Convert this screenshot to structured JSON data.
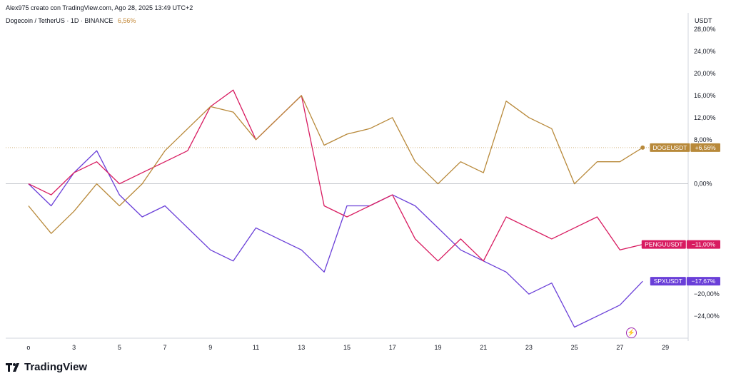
{
  "header": {
    "attribution": "Alex975 creato con TradingView.com, Ago 28, 2025 13:49 UTC+2",
    "symbol": "Dogecoin / TetherUS · 1D · BINANCE",
    "change": "6,56%"
  },
  "axis": {
    "unit": "USDT"
  },
  "brand": {
    "name": "TradingView"
  },
  "icons": {
    "flash": "lightning-icon",
    "logo": "tradingview-logo-icon"
  },
  "chart_data": {
    "type": "line",
    "x": [
      1,
      2,
      3,
      4,
      5,
      6,
      7,
      8,
      9,
      10,
      11,
      12,
      13,
      14,
      15,
      16,
      17,
      18,
      19,
      20,
      21,
      22,
      23,
      24,
      25,
      26,
      27,
      28
    ],
    "x_tick_labels": [
      "o",
      "3",
      "5",
      "7",
      "9",
      "11",
      "13",
      "15",
      "17",
      "19",
      "21",
      "23",
      "25",
      "27",
      "29"
    ],
    "y_tick_labels": [
      "28,00%",
      "24,00%",
      "20,00%",
      "16,00%",
      "12,00%",
      "8,00%",
      "0,00%",
      "−20,00%",
      "−24,00%"
    ],
    "ylim": [
      -28,
      31
    ],
    "series": [
      {
        "name": "SPXUSDT",
        "color": "#6a3fd8",
        "last_label": "−17,67%",
        "values": [
          0,
          -4,
          2,
          6,
          -2,
          -6,
          -4,
          -8,
          -12,
          -14,
          -8,
          -10,
          -12,
          -16,
          -4,
          -4,
          -2,
          -4,
          -8,
          -12,
          -14,
          -16,
          -20,
          -18,
          -26,
          -24,
          -22,
          -17.67
        ]
      },
      {
        "name": "PENGUUSDT",
        "color": "#d81b60",
        "last_label": "−11,00%",
        "values": [
          0,
          -2,
          2,
          4,
          0,
          2,
          4,
          6,
          14,
          17,
          8,
          12,
          16,
          -4,
          -6,
          -4,
          -2,
          -10,
          -14,
          -10,
          -14,
          -6,
          -8,
          -10,
          -8,
          -6,
          -12,
          -11
        ]
      },
      {
        "name": "DOGEUSDT",
        "color": "#b8893a",
        "last_label": "+6,56%",
        "values": [
          -4,
          -9,
          -5,
          0,
          -4,
          0,
          6,
          10,
          14,
          13,
          8,
          12,
          16,
          7,
          9,
          10,
          12,
          4,
          0,
          4,
          2,
          15,
          12,
          10,
          0,
          4,
          4,
          6.56
        ]
      }
    ]
  }
}
